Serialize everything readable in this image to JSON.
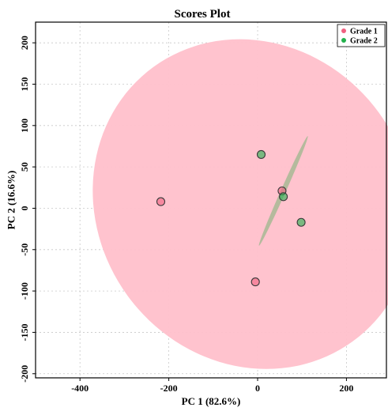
{
  "chart_data": {
    "type": "scatter",
    "title": "Scores Plot",
    "xlabel": "PC 1 (82.6%)",
    "ylabel": "PC 2 (16.6%)",
    "xlim": [
      -500,
      290
    ],
    "ylim": [
      -205,
      225
    ],
    "xticks": [
      -400,
      -200,
      0,
      200
    ],
    "yticks": [
      -200,
      -150,
      -100,
      -50,
      0,
      50,
      100,
      150,
      200
    ],
    "grid": true,
    "legend_position": "top-right",
    "series": [
      {
        "name": "Grade 1",
        "color": "#f06080",
        "ellipse_color": "#ffc0cb",
        "points": [
          {
            "x": -218,
            "y": 8
          },
          {
            "x": -5,
            "y": -89
          },
          {
            "x": 55,
            "y": 21
          }
        ],
        "confidence_ellipse": {
          "cx": -10,
          "cy": 5,
          "rx": 350,
          "ry": 205,
          "angle_deg": -36
        }
      },
      {
        "name": "Grade 2",
        "color": "#22b14c",
        "ellipse_color": "#a8b894",
        "points": [
          {
            "x": 8,
            "y": 65
          },
          {
            "x": 58,
            "y": 14
          },
          {
            "x": 98,
            "y": -17
          }
        ],
        "confidence_ellipse": {
          "cx": 58,
          "cy": 21,
          "rx": 135,
          "ry": 3,
          "angle_deg": -66
        }
      }
    ]
  }
}
